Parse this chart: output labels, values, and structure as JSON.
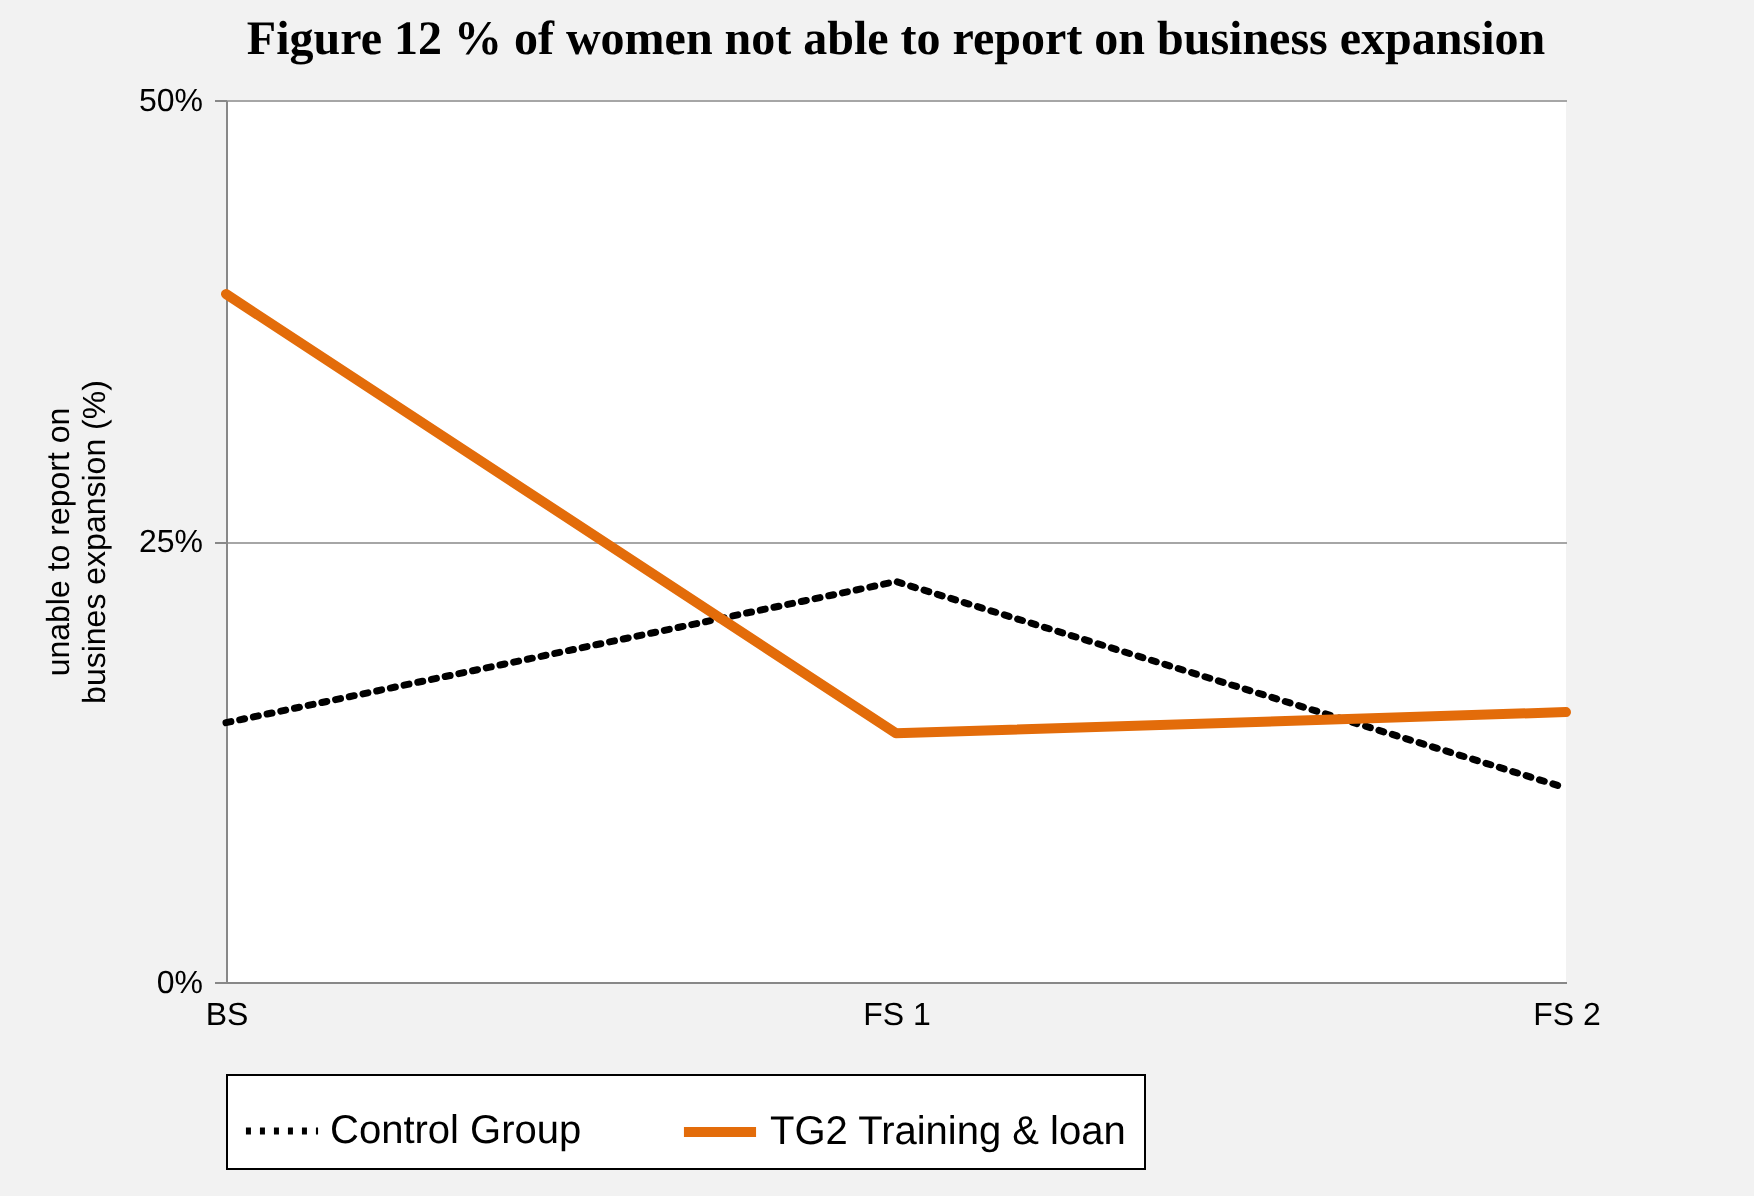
{
  "chart_data": {
    "type": "line",
    "title": "Figure 12 % of women not able to report on business expansion",
    "ylabel": "unable to report on\nbusines expansion (%)",
    "categories": [
      "BS",
      "FS 1",
      "FS 2"
    ],
    "series": [
      {
        "name": "Control Group",
        "color": "#000000",
        "line_style": "dotted",
        "values": [
          14.7,
          22.7,
          11.0
        ]
      },
      {
        "name": "TG2 Training & loan",
        "color": "#e36c0a",
        "line_style": "solid",
        "values": [
          39.0,
          14.1,
          15.3
        ]
      }
    ],
    "ylim": [
      0,
      50
    ],
    "yticks": [
      {
        "value": 0,
        "label": "0%"
      },
      {
        "value": 25,
        "label": "25%"
      },
      {
        "value": 50,
        "label": "50%"
      }
    ],
    "grid": "y",
    "legend": "bottom",
    "marker": "none"
  }
}
